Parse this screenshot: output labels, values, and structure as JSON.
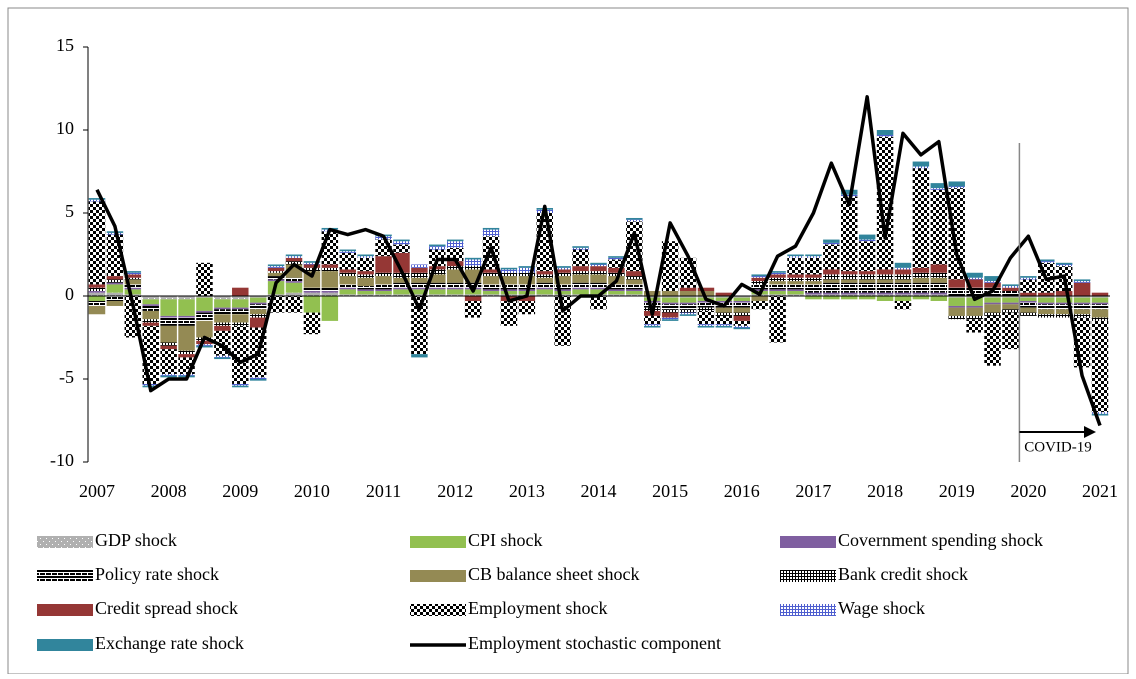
{
  "chart_data": {
    "type": "bar",
    "categories": [
      "2007",
      null,
      null,
      null,
      "2008",
      null,
      null,
      null,
      "2009",
      null,
      null,
      null,
      "2010",
      null,
      null,
      null,
      "2011",
      null,
      null,
      null,
      "2012",
      null,
      null,
      null,
      "2013",
      null,
      null,
      null,
      "2014",
      null,
      null,
      null,
      "2015",
      null,
      null,
      null,
      "2016",
      null,
      null,
      null,
      "2017",
      null,
      null,
      null,
      "2018",
      null,
      null,
      null,
      "2019",
      null,
      null,
      null,
      "2020",
      null,
      null,
      null,
      "2021"
    ],
    "ylim": [
      -10,
      15
    ],
    "yticks": [
      -10,
      -5,
      0,
      5,
      10,
      15
    ],
    "annotation": "COVID-19",
    "series": [
      {
        "name": "GDP shock",
        "color": "#8c8c8c",
        "pattern": "dots",
        "values": [
          0.2,
          0.2,
          0.1,
          -0.2,
          -0.2,
          -0.2,
          -0.1,
          -0.2,
          -0.2,
          -0.1,
          0.1,
          0.2,
          0.2,
          0.2,
          0.1,
          0.1,
          0.1,
          0.1,
          0.1,
          0.1,
          0.1,
          0.1,
          0.1,
          0.1,
          0.1,
          0.1,
          0.1,
          0.1,
          0.1,
          0.1,
          0.1,
          -0.1,
          -0.1,
          -0.1,
          -0.1,
          -0.1,
          -0.1,
          0.1,
          0.1,
          0.1,
          0.1,
          0.1,
          0.1,
          0.1,
          0.1,
          0.1,
          0.1,
          0.1,
          -0.1,
          -0.1,
          -0.1,
          -0.1,
          -0.1,
          -0.1,
          -0.1,
          -0.1,
          -0.1
        ]
      },
      {
        "name": "CPI shock",
        "color": "#92c050",
        "values": [
          -0.3,
          0.5,
          0.3,
          -0.3,
          -1.0,
          -1.0,
          -0.8,
          -0.5,
          -0.5,
          -0.3,
          0.8,
          0.6,
          -1.0,
          -1.5,
          0.3,
          0.2,
          0.2,
          0.3,
          0.3,
          0.3,
          0.3,
          0.3,
          0.2,
          0.2,
          0.2,
          0.3,
          0.2,
          0.3,
          0.3,
          0.2,
          0.2,
          -0.2,
          -0.3,
          -0.3,
          -0.2,
          -0.2,
          -0.2,
          0.2,
          0.2,
          0.2,
          -0.2,
          -0.2,
          -0.2,
          -0.2,
          -0.3,
          -0.3,
          -0.2,
          -0.3,
          -0.5,
          -0.5,
          -0.3,
          -0.3,
          -0.2,
          -0.3,
          -0.3,
          -0.3,
          -0.3
        ]
      },
      {
        "name": "Covernment spending shock",
        "color": "#7f5fa0",
        "values": [
          0.1,
          0.1,
          0.1,
          -0.1,
          -0.1,
          -0.1,
          -0.1,
          -0.1,
          -0.1,
          -0.1,
          0.1,
          0.1,
          0.1,
          0.1,
          0.1,
          0.1,
          0.1,
          0.1,
          0.1,
          0.1,
          0.1,
          0.1,
          0.1,
          0.1,
          0.1,
          0.1,
          0.1,
          0.1,
          0.1,
          0.1,
          0.1,
          -0.1,
          -0.1,
          -0.1,
          -0.1,
          -0.1,
          -0.1,
          0.1,
          0.1,
          0.1,
          0.1,
          0.1,
          0.1,
          0.1,
          0.1,
          0.1,
          0.1,
          0.1,
          -0.1,
          -0.1,
          -0.1,
          -0.1,
          -0.1,
          -0.1,
          -0.1,
          -0.1,
          -0.1
        ]
      },
      {
        "name": "Policy rate shock",
        "color": "#000000",
        "pattern": "bricks",
        "values": [
          -0.3,
          -0.3,
          0.2,
          -0.3,
          -0.5,
          -0.5,
          -0.5,
          -0.3,
          -0.3,
          -0.3,
          0.2,
          0.2,
          0.2,
          0.2,
          0.2,
          0.2,
          0.3,
          0.3,
          0.3,
          0.3,
          0.3,
          0.3,
          0.3,
          0.3,
          0.3,
          0.3,
          0.3,
          0.3,
          0.3,
          0.3,
          0.3,
          -0.3,
          -0.3,
          -0.3,
          -0.3,
          -0.3,
          -0.3,
          0.3,
          0.3,
          0.3,
          0.5,
          0.6,
          0.6,
          0.6,
          0.6,
          0.6,
          0.6,
          0.6,
          0.5,
          0.5,
          0.5,
          0.3,
          -0.3,
          -0.3,
          -0.3,
          -0.3,
          -0.3
        ]
      },
      {
        "name": "CB balance sheet shock",
        "color": "#948a54",
        "values": [
          -0.5,
          -0.3,
          0.3,
          -0.5,
          -1.0,
          -1.5,
          -1.0,
          -0.5,
          -0.5,
          -0.3,
          0.2,
          0.8,
          1.0,
          1.0,
          0.5,
          0.5,
          0.5,
          0.3,
          0.3,
          0.5,
          0.8,
          0.8,
          0.5,
          0.5,
          0.5,
          0.3,
          0.5,
          0.5,
          0.5,
          0.5,
          0.3,
          0.3,
          0.3,
          0.3,
          0.3,
          -0.3,
          -0.3,
          -0.3,
          0.2,
          0.2,
          0.2,
          0.2,
          0.2,
          0.2,
          0.2,
          0.2,
          0.3,
          0.3,
          -0.5,
          -0.5,
          -0.5,
          -0.3,
          -0.3,
          -0.3,
          -0.3,
          -0.3,
          -0.5
        ]
      },
      {
        "name": "Bank credit shock",
        "color": "#ffffff",
        "pattern": "cross",
        "values": [
          0.2,
          0.2,
          0.1,
          -0.2,
          -0.2,
          -0.2,
          -0.2,
          -0.2,
          -0.2,
          -0.2,
          0.1,
          0.2,
          0.2,
          0.2,
          0.2,
          0.2,
          0.2,
          0.3,
          0.3,
          0.3,
          0.2,
          0.2,
          0.2,
          0.2,
          0.2,
          0.2,
          0.2,
          0.2,
          0.2,
          0.2,
          0.2,
          -0.2,
          -0.2,
          -0.2,
          -0.2,
          -0.2,
          -0.2,
          0.2,
          0.2,
          0.2,
          0.2,
          0.3,
          0.3,
          0.3,
          0.3,
          0.3,
          0.3,
          0.3,
          -0.2,
          -0.2,
          -0.2,
          -0.2,
          -0.2,
          -0.2,
          -0.2,
          -0.2,
          -0.2
        ]
      },
      {
        "name": "Credit spread shock",
        "color": "#953735",
        "values": [
          0.2,
          0.2,
          0.2,
          -0.2,
          -0.2,
          -0.2,
          -0.2,
          -0.3,
          0.5,
          -0.6,
          0.2,
          0.2,
          0.2,
          0.2,
          0.2,
          0.2,
          1.0,
          1.2,
          0.3,
          0.2,
          0.3,
          -0.3,
          0.2,
          -0.3,
          -0.3,
          0.2,
          0.2,
          0.3,
          0.3,
          0.3,
          0.3,
          -0.3,
          -0.3,
          0.2,
          0.2,
          0.2,
          -0.3,
          0.2,
          0.2,
          0.2,
          0.2,
          0.3,
          0.2,
          0.2,
          0.3,
          0.3,
          0.3,
          0.5,
          0.5,
          0.5,
          0.3,
          0.2,
          0.2,
          0.2,
          0.3,
          0.8,
          0.2
        ]
      },
      {
        "name": "Employment shock",
        "color": "#000000",
        "pattern": "checker",
        "values": [
          5.0,
          2.5,
          -2.5,
          -3.5,
          -1.5,
          -1.0,
          2.0,
          -1.5,
          -3.5,
          -3.0,
          -1.0,
          -1.0,
          -1.3,
          2.0,
          1.0,
          0.8,
          1.0,
          0.5,
          -3.5,
          1.0,
          0.8,
          -1.0,
          2.0,
          -1.5,
          -0.8,
          3.5,
          -3.0,
          1.0,
          -0.8,
          0.5,
          3.0,
          -0.5,
          3.0,
          1.8,
          -0.8,
          -0.5,
          -0.3,
          -0.5,
          -2.8,
          1.0,
          1.0,
          1.5,
          4.5,
          1.8,
          8.0,
          -0.5,
          6.0,
          4.5,
          5.5,
          -0.8,
          -3.0,
          -2.2,
          0.8,
          1.8,
          1.5,
          -3.0,
          -5.5
        ]
      },
      {
        "name": "Wage shock",
        "color": "#4f5fd0",
        "pattern": "cross",
        "values": [
          0.1,
          0.1,
          0.1,
          -0.1,
          -0.1,
          -0.1,
          -0.1,
          -0.1,
          -0.1,
          -0.1,
          0.1,
          0.1,
          0.1,
          0.1,
          0.1,
          0.1,
          0.2,
          0.2,
          0.2,
          0.2,
          0.4,
          0.4,
          0.4,
          0.2,
          0.3,
          0.2,
          0.1,
          0.1,
          0.1,
          0.1,
          0.1,
          -0.1,
          -0.1,
          -0.1,
          -0.1,
          -0.1,
          -0.1,
          0.1,
          0.1,
          0.1,
          0.1,
          0.1,
          0.1,
          0.1,
          0.1,
          0.1,
          0.1,
          0.1,
          0.1,
          0.1,
          0.1,
          0.1,
          0.1,
          0.1,
          0.1,
          0.1,
          -0.1
        ]
      },
      {
        "name": "Exchange rate shock",
        "color": "#31859c",
        "values": [
          0.1,
          0.1,
          0.1,
          -0.1,
          -0.1,
          -0.1,
          -0.1,
          -0.1,
          -0.1,
          -0.1,
          0.1,
          0.1,
          0.1,
          0.1,
          0.1,
          0.1,
          0.1,
          0.1,
          -0.2,
          0.1,
          0.1,
          0.1,
          0.1,
          0.1,
          0.1,
          0.1,
          0.1,
          0.1,
          0.1,
          0.1,
          0.1,
          -0.1,
          -0.1,
          -0.1,
          -0.1,
          -0.1,
          -0.1,
          0.1,
          0.1,
          0.1,
          0.1,
          0.2,
          0.3,
          0.3,
          0.3,
          0.3,
          0.3,
          0.3,
          0.3,
          0.3,
          0.3,
          0.1,
          0.1,
          0.1,
          0.1,
          0.1,
          -0.1
        ]
      },
      {
        "name": "Employment stochastic component",
        "type": "line",
        "color": "#000000",
        "values": [
          6.4,
          4.2,
          -0.5,
          -5.7,
          -5.0,
          -5.0,
          -2.5,
          -3.0,
          -4.0,
          -3.5,
          0.8,
          1.9,
          1.2,
          4.0,
          3.7,
          4.0,
          3.6,
          1.5,
          -0.8,
          2.2,
          2.2,
          0.3,
          2.9,
          -0.3,
          0.0,
          5.4,
          -0.9,
          0.0,
          0.0,
          0.9,
          3.8,
          -1.1,
          4.4,
          2.4,
          -0.2,
          -0.6,
          0.7,
          0.1,
          2.4,
          3.0,
          5.0,
          8.0,
          5.5,
          12.0,
          3.5,
          9.8,
          8.5,
          9.3,
          2.5,
          -0.2,
          0.3,
          2.3,
          3.6,
          1.0,
          1.2,
          -4.8,
          -7.8
        ]
      }
    ]
  }
}
